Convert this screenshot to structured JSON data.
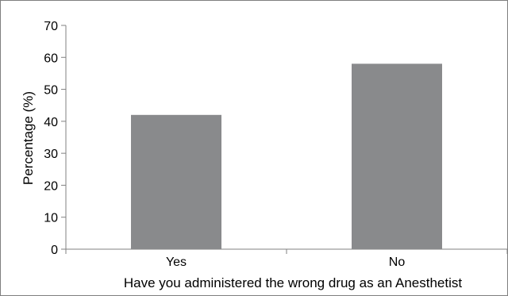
{
  "chart_data": {
    "type": "bar",
    "categories": [
      "Yes",
      "No"
    ],
    "values": [
      42,
      58
    ],
    "title": "",
    "xlabel": "Have you administered the wrong drug as an Anesthetist",
    "ylabel": "Percentage (%)",
    "ylim": [
      0,
      70
    ],
    "yticks": [
      0,
      10,
      20,
      30,
      40,
      50,
      60,
      70
    ],
    "grid": false,
    "legend": "none",
    "bar_color": "#898a8c",
    "axis_color": "#808080"
  }
}
